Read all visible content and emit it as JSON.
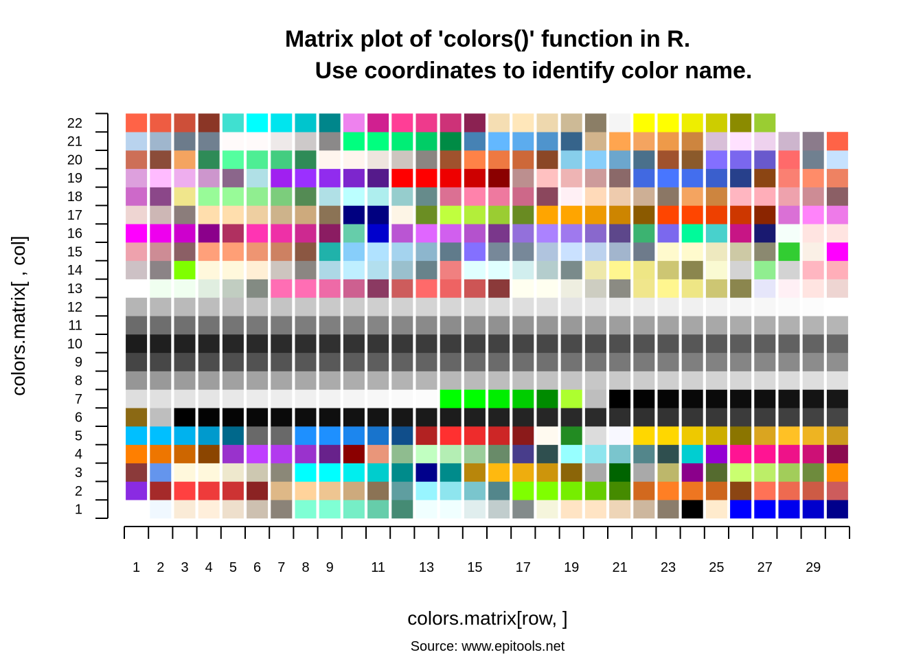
{
  "chart_data": {
    "type": "heatmap",
    "title_line1": "Matrix plot of 'colors()' function in R.",
    "title_line2": "Use coordinates to identify color name.",
    "xlabel": "colors.matrix[row, ]",
    "ylabel": "colors.matrix[ , col]",
    "source": "Source: www.epitools.net",
    "x_tick_labels": [
      "1",
      "2",
      "3",
      "4",
      "5",
      "6",
      "7",
      "8",
      "9",
      "11",
      "13",
      "15",
      "17",
      "19",
      "21",
      "23",
      "25",
      "27",
      "29"
    ],
    "x_tick_positions": [
      1,
      2,
      3,
      4,
      5,
      6,
      7,
      8,
      9,
      11,
      13,
      15,
      17,
      19,
      21,
      23,
      25,
      27,
      29
    ],
    "y_tick_labels": [
      "1",
      "2",
      "3",
      "4",
      "5",
      "6",
      "7",
      "8",
      "9",
      "10",
      "11",
      "12",
      "13",
      "14",
      "15",
      "16",
      "17",
      "18",
      "19",
      "20",
      "21",
      "22"
    ],
    "y_tick_positions": [
      1,
      2,
      3,
      4,
      5,
      6,
      7,
      8,
      9,
      10,
      11,
      12,
      13,
      14,
      15,
      16,
      17,
      18,
      19,
      20,
      21,
      22
    ],
    "xlim": [
      0.5,
      30.5
    ],
    "ylim": [
      0.5,
      22.5
    ],
    "columns": [
      [
        "#ffffff",
        "#8a2be2",
        "#8b3a3a",
        "#ff7f00",
        "#00bfff",
        "#8b6914",
        "#dedede",
        "#969696",
        "#454545",
        "#1c1c1c",
        "#6b6b6b",
        "#b5b5b5",
        "#ffffff",
        "#cdc1c5",
        "#eea2ad",
        "#ff00ff",
        "#eed5d2",
        "#cd69c9",
        "#dda0dd",
        "#cd6f57",
        "#b9d3ee",
        "#ff6347"
      ],
      [
        "#f0f8ff",
        "#a52a2a",
        "#6495ed",
        "#ee7600",
        "#00bfff",
        "#bebebe",
        "#e0e0e0",
        "#999999",
        "#474747",
        "#1f1f1f",
        "#6e6e6e",
        "#b8b8b8",
        "#f0fff0",
        "#8b8386",
        "#cd8c95",
        "#ee00ee",
        "#cdb7b5",
        "#8b4789",
        "#ffbbff",
        "#8b4c39",
        "#9fb6cd",
        "#ee5c42"
      ],
      [
        "#faebd7",
        "#ff4040",
        "#fff8dc",
        "#cd6600",
        "#00b2ee",
        "#000000",
        "#e3e3e3",
        "#9c9c9c",
        "#4a4a4a",
        "#212121",
        "#707070",
        "#bababa",
        "#f0fff0",
        "#7fff00",
        "#8b5f65",
        "#cd00cd",
        "#8b7d7b",
        "#f0e68c",
        "#eeaeee",
        "#f4a460",
        "#6c7b8b",
        "#cd4f39"
      ],
      [
        "#ffefdb",
        "#ee3b3b",
        "#fff8dc",
        "#8b4500",
        "#009acd",
        "#030303",
        "#e5e5e5",
        "#9e9e9e",
        "#4d4d4d",
        "#242424",
        "#737373",
        "#bdbdbd",
        "#e0eee0",
        "#fff8dc",
        "#ffa07a",
        "#8b008b",
        "#ffdead",
        "#98fb98",
        "#cd96cd",
        "#2e8b57",
        "#708090",
        "#8b3626"
      ],
      [
        "#eedfcc",
        "#cd3333",
        "#eee8cd",
        "#9932cc",
        "#00688b",
        "#050505",
        "#e8e8e8",
        "#a1a1a1",
        "#4f4f4f",
        "#262626",
        "#757575",
        "#bfbfbf",
        "#c1cdc1",
        "#fff8dc",
        "#ff9f76",
        "#b03060",
        "#ffdead",
        "#98fb98",
        "#8b668b",
        "#54ff9f",
        "#fffafa",
        "#40e0d0"
      ],
      [
        "#cdc0b0",
        "#8b2323",
        "#cdc8b1",
        "#bf3eff",
        "#696969",
        "#080808",
        "#ebebeb",
        "#a3a3a3",
        "#525252",
        "#292929",
        "#787878",
        "#c2c2c2",
        "#838b83",
        "#ffefd5",
        "#ee9572",
        "#ff34b3",
        "#eecfa1",
        "#90ee90",
        "#b0e0e6",
        "#4eee94",
        "#fffafa",
        "#00ffff"
      ],
      [
        "#8b8378",
        "#deb887",
        "#8b8878",
        "#b23aee",
        "#696969",
        "#0a0a0a",
        "#ededed",
        "#a6a6a6",
        "#545454",
        "#2b2b2b",
        "#7a7a7a",
        "#c4c4c4",
        "#ff6eb4",
        "#cdc5bf",
        "#cd8162",
        "#ee30a7",
        "#cdb38b",
        "#7ccd7c",
        "#a020f0",
        "#43cd80",
        "#eee9e9",
        "#00e5ee"
      ],
      [
        "#7fffd4",
        "#ffd39b",
        "#00ffff",
        "#9a32cd",
        "#1e90ff",
        "#0d0d0d",
        "#f0f0f0",
        "#a8a8a8",
        "#575757",
        "#2e2e2e",
        "#7d7d7d",
        "#c7c7c7",
        "#ff6eb4",
        "#8b8682",
        "#8b5742",
        "#cd2990",
        "#cdaa7d",
        "#548b54",
        "#9b30ff",
        "#2e8b57",
        "#cdc9c9",
        "#00c5cd"
      ],
      [
        "#7fffd4",
        "#eec591",
        "#00ffff",
        "#68228b",
        "#1e90ff",
        "#0f0f0f",
        "#f2f2f2",
        "#ababab",
        "#595959",
        "#303030",
        "#7f7f7f",
        "#c9c9c9",
        "#ee6aa7",
        "#add8e6",
        "#20b2aa",
        "#8b1c62",
        "#8b7355",
        "#b0e0e6",
        "#912cee",
        "#fff5ee",
        "#8b8989",
        "#00868b"
      ],
      [
        "#76eec6",
        "#cdaa7d",
        "#00eeee",
        "#8b0000",
        "#1c86ee",
        "#121212",
        "#f5f5f5",
        "#adadad",
        "#5c5c5c",
        "#333333",
        "#828282",
        "#cccccc",
        "#cd6090",
        "#bfefff",
        "#87cefa",
        "#66cdaa",
        "#000080",
        "#bbffff",
        "#7d26cd",
        "#fff5ee",
        "#00ff7f",
        "#ee82ee"
      ],
      [
        "#66cdaa",
        "#8b7355",
        "#00cdcd",
        "#e9967a",
        "#1874cd",
        "#141414",
        "#f7f7f7",
        "#b0b0b0",
        "#5e5e5e",
        "#363636",
        "#858585",
        "#cfcfcf",
        "#8b3a62",
        "#b2dfee",
        "#b0e2ff",
        "#0000cd",
        "#000080",
        "#aeeeee",
        "#551a8b",
        "#eee5de",
        "#00ff7f",
        "#d02090"
      ],
      [
        "#458b74",
        "#5f9ea0",
        "#008b8b",
        "#8fbc8f",
        "#104e8b",
        "#171717",
        "#fafafa",
        "#b3b3b3",
        "#616161",
        "#383838",
        "#878787",
        "#d1d1d1",
        "#cd5c5c",
        "#9ac0cd",
        "#a4d3ee",
        "#ba55d3",
        "#fdf5e6",
        "#96cdcd",
        "#ff0000",
        "#cdc5bf",
        "#00ee76",
        "#ff3e96"
      ],
      [
        "#f0ffff",
        "#98f5ff",
        "#00008b",
        "#c1ffc1",
        "#b22222",
        "#1a1a1a",
        "#fcfcfc",
        "#b5b5b5",
        "#636363",
        "#3b3b3b",
        "#8a8a8a",
        "#d4d4d4",
        "#ff6a6a",
        "#68838b",
        "#8db6cd",
        "#e066ff",
        "#6b8e23",
        "#668b8b",
        "#ff0000",
        "#8b8682",
        "#00cd66",
        "#ee3a8c"
      ],
      [
        "#f0ffff",
        "#8ee5ee",
        "#008b8b",
        "#b4eeb4",
        "#ff3030",
        "#1c1c1c",
        "#00ff00",
        "#b8b8b8",
        "#666666",
        "#3d3d3d",
        "#8c8c8c",
        "#d6d6d6",
        "#ee6363",
        "#f08080",
        "#607b8b",
        "#d15fee",
        "#c0ff3e",
        "#db7093",
        "#ee0000",
        "#a0522d",
        "#008b45",
        "#cd3278"
      ],
      [
        "#e0eeee",
        "#7ac5cd",
        "#b8860b",
        "#9bcd9b",
        "#ee2c2c",
        "#1f1f1f",
        "#00ff00",
        "#bababa",
        "#696969",
        "#404040",
        "#8f8f8f",
        "#d9d9d9",
        "#cd5555",
        "#e0ffff",
        "#8470ff",
        "#b452cd",
        "#b3ee3a",
        "#ff82ab",
        "#cd0000",
        "#ff8247",
        "#4682b4",
        "#8b2252"
      ],
      [
        "#c1cdcd",
        "#53868b",
        "#ffb90f",
        "#698b69",
        "#cd2626",
        "#212121",
        "#00ee00",
        "#bdbdbd",
        "#6b6b6b",
        "#424242",
        "#919191",
        "#dbdbdb",
        "#8b3a3a",
        "#e0ffff",
        "#778899",
        "#7a378b",
        "#9acd32",
        "#ee799f",
        "#8b0000",
        "#ee7942",
        "#63b8ff",
        "#f5deb3"
      ],
      [
        "#838b8b",
        "#7fff00",
        "#eead0e",
        "#483d8b",
        "#8b1a1a",
        "#242424",
        "#00cd00",
        "#bfbfbf",
        "#6e6e6e",
        "#454545",
        "#949494",
        "#dedede",
        "#fffff0",
        "#d1eeee",
        "#778899",
        "#9370db",
        "#698b22",
        "#cd6889",
        "#bc8f8f",
        "#cd6839",
        "#5cacee",
        "#ffe7ba"
      ],
      [
        "#f5f5dc",
        "#7fff00",
        "#cd950c",
        "#2f4f4f",
        "#fffaf0",
        "#262626",
        "#008b00",
        "#c2c2c2",
        "#707070",
        "#474747",
        "#969696",
        "#e0e0e0",
        "#fffff0",
        "#b4cdcd",
        "#b0c4de",
        "#ab82ff",
        "#ffa500",
        "#8b475d",
        "#ffc1c1",
        "#8b4726",
        "#4f94cd",
        "#eed8ae"
      ],
      [
        "#ffe4c4",
        "#76ee00",
        "#8b6508",
        "#97ffff",
        "#228b22",
        "#292929",
        "#adff2f",
        "#c4c4c4",
        "#737373",
        "#4a4a4a",
        "#999999",
        "#e3e3e3",
        "#eeeee0",
        "#7a8b8b",
        "#cae1ff",
        "#9f79ee",
        "#ffa500",
        "#fff0f5",
        "#eeb4b4",
        "#87ceeb",
        "#36648b",
        "#cdba96"
      ],
      [
        "#ffe4c4",
        "#66cd00",
        "#a9a9a9",
        "#8ee5ee",
        "#dcdcdc",
        "#2b2b2b",
        "#bebebe",
        "#c7c7c7",
        "#757575",
        "#4d4d4d",
        "#9c9c9c",
        "#e5e5e5",
        "#cdcdc1",
        "#eee8aa",
        "#bcd2ee",
        "#8968cd",
        "#ee9a00",
        "#ffdab9",
        "#cd9b9b",
        "#87cefa",
        "#d2b48c",
        "#8b7e66"
      ],
      [
        "#eed5b7",
        "#458b00",
        "#006400",
        "#7ac5cd",
        "#f8f8ff",
        "#2e2e2e",
        "#000000",
        "#c9c9c9",
        "#787878",
        "#4f4f4f",
        "#9e9e9e",
        "#e8e8e8",
        "#8b8b83",
        "#fff68f",
        "#a2b5cd",
        "#5d478b",
        "#cd8500",
        "#eecbad",
        "#8b6969",
        "#6ca6cd",
        "#ffa54f",
        "#f5f5f5"
      ],
      [
        "#cdb79e",
        "#d2691e",
        "#a9a9a9",
        "#53868b",
        "#ffd700",
        "#303030",
        "#030303",
        "#cccccc",
        "#7a7a7a",
        "#525252",
        "#a1a1a1",
        "#ebebeb",
        "#f0e68c",
        "#eee685",
        "#6e7b8b",
        "#3cb371",
        "#8b5a00",
        "#cdaf95",
        "#4169e1",
        "#4a708b",
        "#f4a460",
        "#ffff00"
      ],
      [
        "#8b7d6b",
        "#ff7f24",
        "#bdb76b",
        "#2f4f4f",
        "#ffd700",
        "#333333",
        "#050505",
        "#cfcfcf",
        "#7d7d7d",
        "#545454",
        "#a3a3a3",
        "#ededed",
        "#fff68f",
        "#cdc673",
        "#fffacd",
        "#7b68ee",
        "#ff4500",
        "#8b7765",
        "#4876ff",
        "#a0522d",
        "#ee9a49",
        "#ffff00"
      ],
      [
        "#000000",
        "#ee7621",
        "#8b008b",
        "#00ced1",
        "#eec900",
        "#363636",
        "#080808",
        "#d1d1d1",
        "#7f7f7f",
        "#575757",
        "#a6a6a6",
        "#f0f0f0",
        "#eee685",
        "#8b864e",
        "#fffacd",
        "#00fa9a",
        "#ff4500",
        "#f4a460",
        "#436eee",
        "#8b5a2b",
        "#cd853f",
        "#eeee00"
      ],
      [
        "#ffebcd",
        "#cd661d",
        "#556b2f",
        "#9400d3",
        "#cdad00",
        "#383838",
        "#0a0a0a",
        "#d4d4d4",
        "#828282",
        "#595959",
        "#a8a8a8",
        "#f2f2f2",
        "#cdc673",
        "#fafad2",
        "#eee9bf",
        "#48d1cc",
        "#ee4000",
        "#cd853f",
        "#3a5fcd",
        "#836fff",
        "#d8bfd8",
        "#cdcd00"
      ],
      [
        "#0000ff",
        "#8b4513",
        "#caff70",
        "#ff1493",
        "#8b7500",
        "#3b3b3b",
        "#0d0d0d",
        "#d6d6d6",
        "#858585",
        "#5c5c5c",
        "#ababab",
        "#f5f5f5",
        "#8b864e",
        "#d3d3d3",
        "#cdc9a5",
        "#c71585",
        "#cd3700",
        "#ffb6c1",
        "#27408b",
        "#7a67ee",
        "#ffe1ff",
        "#8b8b00"
      ],
      [
        "#0000ff",
        "#ff7256",
        "#bcee68",
        "#ff1493",
        "#daa520",
        "#3d3d3d",
        "#0f0f0f",
        "#d9d9d9",
        "#878787",
        "#5e5e5e",
        "#adadad",
        "#f7f7f7",
        "#e6e6fa",
        "#90ee90",
        "#8b8970",
        "#191970",
        "#8b2500",
        "#ffaeb9",
        "#8b4513",
        "#6959cd",
        "#eed2ee",
        "#9acd32"
      ],
      [
        "#0000ee",
        "#ee6a50",
        "#a2cd5a",
        "#ee1289",
        "#ffc125",
        "#404040",
        "#121212",
        "#dbdbdb",
        "#8a8a8a",
        "#616161",
        "#b0b0b0",
        "#fafafa",
        "#fff0f5",
        "#d3d3d3",
        "#32cd32",
        "#f5fffa",
        "#da70d6",
        "#eea2ad",
        "#fa8072",
        "#ff6a6a",
        "#cdb5cd",
        ""
      ],
      [
        "#0000cd",
        "#cd5b45",
        "#6e8b3d",
        "#cd1076",
        "#eeb422",
        "#424242",
        "#141414",
        "#dedede",
        "#8c8c8c",
        "#636363",
        "#b3b3b3",
        "#fcfcfc",
        "#ffe4e1",
        "#ffb6c1",
        "#faf0e6",
        "#ffe4e1",
        "#ff83fa",
        "#cd8c95",
        "#ff8c69",
        "#708090",
        "#8b7b8b",
        ""
      ],
      [
        "#00008b",
        "#cd5c5c",
        "#ff8c00",
        "#8b0a50",
        "#cd9b1d",
        "#454545",
        "#171717",
        "#e0e0e0",
        "#8f8f8f",
        "#666666",
        "#b5b5b5",
        "#ffffff",
        "#eed5d2",
        "#ffaeb9",
        "#ff00ff",
        "#ffe4e1",
        "#ee7ae9",
        "#8b5f65",
        "#ee8262",
        "#c6e2ff",
        "#ff6347",
        ""
      ]
    ]
  }
}
